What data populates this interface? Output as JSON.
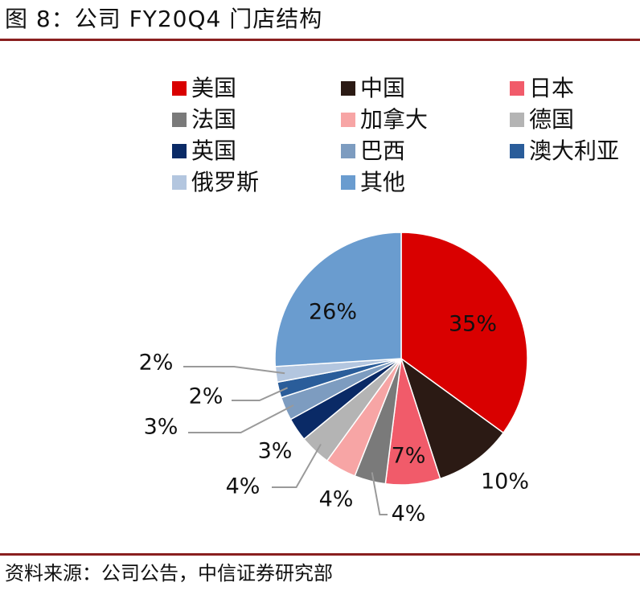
{
  "figure_title": "图 8：公司 FY20Q4 门店结构",
  "source": "资料来源：公司公告，中信证券研究部",
  "chart_data": {
    "type": "pie",
    "title": "",
    "legend_position": "top",
    "slices": [
      {
        "name": "美国",
        "value": 35,
        "label": "35%",
        "color": "#d90000"
      },
      {
        "name": "中国",
        "value": 10,
        "label": "10%",
        "color": "#2b1a14"
      },
      {
        "name": "日本",
        "value": 7,
        "label": "7%",
        "color": "#f15b6a"
      },
      {
        "name": "法国",
        "value": 4,
        "label": "4%",
        "color": "#7a7a7a"
      },
      {
        "name": "加拿大",
        "value": 4,
        "label": "4%",
        "color": "#f7a5a5"
      },
      {
        "name": "德国",
        "value": 4,
        "label": "4%",
        "color": "#b4b4b4"
      },
      {
        "name": "英国",
        "value": 3,
        "label": "3%",
        "color": "#0a2a66"
      },
      {
        "name": "巴西",
        "value": 3,
        "label": "3%",
        "color": "#7d9cc0"
      },
      {
        "name": "澳大利亚",
        "value": 2,
        "label": "2%",
        "color": "#2a5d9a"
      },
      {
        "name": "俄罗斯",
        "value": 2,
        "label": "2%",
        "color": "#b3c6df"
      },
      {
        "name": "其他",
        "value": 26,
        "label": "26%",
        "color": "#6a9ccf"
      }
    ]
  }
}
